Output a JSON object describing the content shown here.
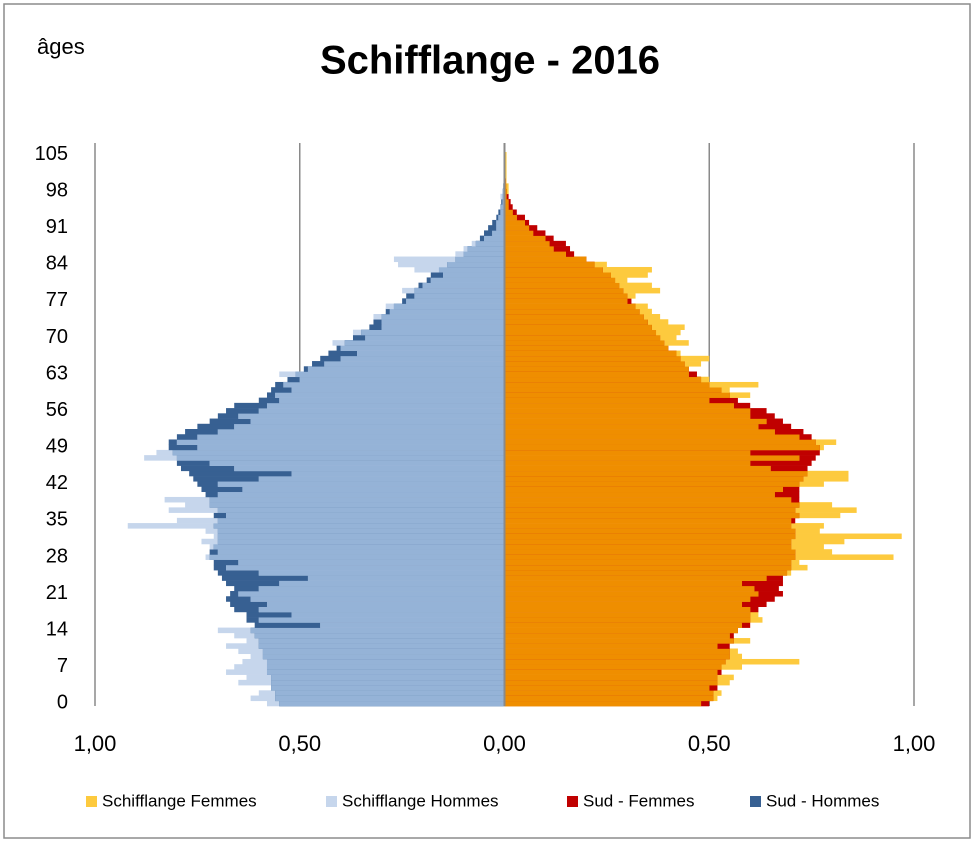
{
  "chart_data": {
    "type": "pyramid",
    "title": "Schifflange - 2016",
    "y_label": "âges",
    "y": [
      0,
      1,
      2,
      3,
      4,
      5,
      6,
      7,
      8,
      9,
      10,
      11,
      12,
      13,
      14,
      15,
      16,
      17,
      18,
      19,
      20,
      21,
      22,
      23,
      24,
      25,
      26,
      27,
      28,
      29,
      30,
      31,
      32,
      33,
      34,
      35,
      36,
      37,
      38,
      39,
      40,
      41,
      42,
      43,
      44,
      45,
      46,
      47,
      48,
      49,
      50,
      51,
      52,
      53,
      54,
      55,
      56,
      57,
      58,
      59,
      60,
      61,
      62,
      63,
      64,
      65,
      66,
      67,
      68,
      69,
      70,
      71,
      72,
      73,
      74,
      75,
      76,
      77,
      78,
      79,
      80,
      81,
      82,
      83,
      84,
      85,
      86,
      87,
      88,
      89,
      90,
      91,
      92,
      93,
      94,
      95,
      96,
      97,
      98,
      99,
      100,
      101,
      102,
      103,
      104,
      105
    ],
    "ylim": [
      -0.5,
      105.5
    ],
    "yticks": [
      0,
      7,
      14,
      21,
      28,
      35,
      42,
      49,
      56,
      63,
      70,
      77,
      84,
      91,
      98,
      105
    ],
    "xlim": [
      -1,
      1
    ],
    "xticks": [
      {
        "value": -1,
        "label": "1,00"
      },
      {
        "value": -0.5,
        "label": "0,50"
      },
      {
        "value": 0,
        "label": "0,00"
      },
      {
        "value": 0.5,
        "label": "0,50"
      },
      {
        "value": 1,
        "label": "1,00"
      }
    ],
    "grid": true,
    "legend": "bottom",
    "overlap_colors": {
      "right": "#ef8e00",
      "left": "#95b3d7"
    },
    "series": [
      {
        "name": "Schifflange Femmes",
        "color": "#fdca3e",
        "side": "right",
        "values": [
          0.48,
          0.52,
          0.53,
          0.5,
          0.55,
          0.56,
          0.52,
          0.58,
          0.72,
          0.58,
          0.57,
          0.52,
          0.6,
          0.55,
          0.57,
          0.58,
          0.63,
          0.62,
          0.6,
          0.58,
          0.6,
          0.62,
          0.61,
          0.58,
          0.64,
          0.7,
          0.74,
          0.72,
          0.95,
          0.8,
          0.78,
          0.83,
          0.97,
          0.77,
          0.78,
          0.7,
          0.82,
          0.86,
          0.8,
          0.7,
          0.66,
          0.68,
          0.78,
          0.84,
          0.84,
          0.65,
          0.6,
          0.72,
          0.6,
          0.78,
          0.81,
          0.72,
          0.66,
          0.62,
          0.64,
          0.6,
          0.6,
          0.56,
          0.5,
          0.6,
          0.55,
          0.62,
          0.5,
          0.45,
          0.45,
          0.48,
          0.5,
          0.43,
          0.4,
          0.45,
          0.42,
          0.43,
          0.44,
          0.4,
          0.38,
          0.36,
          0.35,
          0.3,
          0.32,
          0.38,
          0.36,
          0.3,
          0.35,
          0.36,
          0.25,
          0.2,
          0.15,
          0.12,
          0.11,
          0.1,
          0.07,
          0.06,
          0.05,
          0.03,
          0.02,
          0.01,
          0.01,
          0.005,
          0.01,
          0.01,
          0.005,
          0.005,
          0.005,
          0.005,
          0.005,
          0.005
        ]
      },
      {
        "name": "Schifflange Hommes",
        "color": "#c6d6ec",
        "side": "left",
        "values": [
          0.58,
          0.62,
          0.6,
          0.57,
          0.65,
          0.63,
          0.68,
          0.66,
          0.64,
          0.62,
          0.65,
          0.68,
          0.63,
          0.66,
          0.7,
          0.45,
          0.6,
          0.52,
          0.6,
          0.58,
          0.62,
          0.65,
          0.6,
          0.55,
          0.48,
          0.6,
          0.68,
          0.65,
          0.73,
          0.7,
          0.72,
          0.74,
          0.71,
          0.73,
          0.92,
          0.8,
          0.68,
          0.82,
          0.78,
          0.83,
          0.7,
          0.64,
          0.7,
          0.6,
          0.52,
          0.66,
          0.72,
          0.88,
          0.85,
          0.75,
          0.8,
          0.75,
          0.7,
          0.66,
          0.62,
          0.65,
          0.6,
          0.58,
          0.55,
          0.56,
          0.52,
          0.54,
          0.5,
          0.55,
          0.48,
          0.44,
          0.4,
          0.36,
          0.4,
          0.42,
          0.34,
          0.37,
          0.3,
          0.3,
          0.32,
          0.28,
          0.29,
          0.24,
          0.22,
          0.25,
          0.2,
          0.18,
          0.15,
          0.22,
          0.26,
          0.27,
          0.12,
          0.1,
          0.08,
          0.05,
          0.03,
          0.02,
          0.02,
          0.015,
          0.01,
          0.01,
          0.005,
          0.01,
          0.005,
          0,
          0,
          0,
          0,
          0,
          0,
          0
        ]
      },
      {
        "name": "Sud - Femmes",
        "color": "#c00000",
        "side": "right",
        "values": [
          0.5,
          0.51,
          0.51,
          0.52,
          0.52,
          0.52,
          0.53,
          0.53,
          0.54,
          0.55,
          0.55,
          0.55,
          0.56,
          0.56,
          0.57,
          0.6,
          0.6,
          0.6,
          0.62,
          0.64,
          0.66,
          0.68,
          0.67,
          0.68,
          0.68,
          0.69,
          0.7,
          0.7,
          0.71,
          0.71,
          0.7,
          0.7,
          0.71,
          0.71,
          0.7,
          0.71,
          0.72,
          0.71,
          0.72,
          0.72,
          0.72,
          0.72,
          0.72,
          0.73,
          0.74,
          0.74,
          0.75,
          0.76,
          0.77,
          0.77,
          0.76,
          0.75,
          0.73,
          0.7,
          0.68,
          0.66,
          0.64,
          0.6,
          0.57,
          0.55,
          0.53,
          0.5,
          0.48,
          0.47,
          0.45,
          0.44,
          0.43,
          0.42,
          0.4,
          0.39,
          0.38,
          0.37,
          0.36,
          0.35,
          0.34,
          0.33,
          0.32,
          0.31,
          0.3,
          0.29,
          0.28,
          0.27,
          0.26,
          0.24,
          0.22,
          0.2,
          0.17,
          0.16,
          0.15,
          0.12,
          0.1,
          0.08,
          0.06,
          0.05,
          0.03,
          0.02,
          0.015,
          0.01,
          0.006,
          0.004,
          0.003,
          0.002,
          0.002,
          0.001,
          0.001,
          0.001
        ]
      },
      {
        "name": "Sud - Hommes",
        "color": "#376092",
        "side": "left",
        "values": [
          0.55,
          0.56,
          0.56,
          0.57,
          0.57,
          0.57,
          0.58,
          0.58,
          0.58,
          0.59,
          0.59,
          0.6,
          0.6,
          0.61,
          0.62,
          0.61,
          0.63,
          0.63,
          0.66,
          0.67,
          0.68,
          0.67,
          0.66,
          0.68,
          0.69,
          0.7,
          0.71,
          0.71,
          0.72,
          0.72,
          0.71,
          0.7,
          0.7,
          0.7,
          0.71,
          0.7,
          0.71,
          0.7,
          0.72,
          0.72,
          0.73,
          0.74,
          0.75,
          0.76,
          0.77,
          0.79,
          0.8,
          0.8,
          0.81,
          0.82,
          0.82,
          0.8,
          0.78,
          0.75,
          0.72,
          0.7,
          0.68,
          0.66,
          0.6,
          0.58,
          0.57,
          0.56,
          0.53,
          0.51,
          0.49,
          0.47,
          0.45,
          0.43,
          0.41,
          0.39,
          0.37,
          0.35,
          0.33,
          0.32,
          0.3,
          0.29,
          0.27,
          0.25,
          0.24,
          0.22,
          0.21,
          0.19,
          0.18,
          0.16,
          0.14,
          0.12,
          0.1,
          0.09,
          0.07,
          0.06,
          0.05,
          0.04,
          0.03,
          0.02,
          0.015,
          0.01,
          0.008,
          0.005,
          0.004,
          0.003,
          0.002,
          0.002,
          0.001,
          0.001,
          0.001,
          0.001
        ]
      }
    ]
  }
}
